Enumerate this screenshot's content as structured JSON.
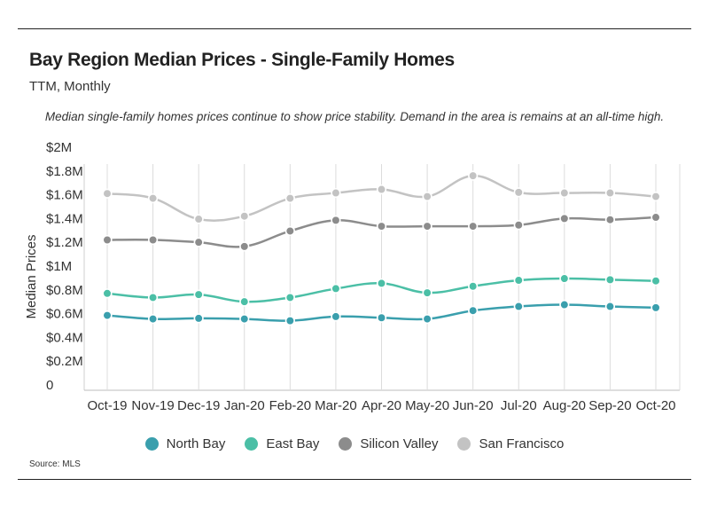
{
  "header": {
    "title": "Bay Region Median Prices - Single-Family Homes",
    "subtitle": "TTM, Monthly",
    "caption": "Median single-family homes prices continue to show price stability. Demand in the area is remains at an all-time high."
  },
  "footer": {
    "source": "Source:  MLS"
  },
  "chart_data": {
    "type": "line",
    "title": "Bay Region Median Prices - Single-Family Homes",
    "subtitle": "TTM, Monthly",
    "ylabel": "Median Prices",
    "xlabel": "",
    "ylim": [
      0,
      2000000
    ],
    "grid": "vertical",
    "legend_position": "bottom",
    "y_ticks": [
      {
        "value": 0,
        "label": "0"
      },
      {
        "value": 200000,
        "label": "$0.2M"
      },
      {
        "value": 400000,
        "label": "$0.4M"
      },
      {
        "value": 600000,
        "label": "$0.6M"
      },
      {
        "value": 800000,
        "label": "$0.8M"
      },
      {
        "value": 1000000,
        "label": "$1M"
      },
      {
        "value": 1200000,
        "label": "$1.2M"
      },
      {
        "value": 1400000,
        "label": "$1.4M"
      },
      {
        "value": 1600000,
        "label": "$1.6M"
      },
      {
        "value": 1800000,
        "label": "$1.8M"
      },
      {
        "value": 2000000,
        "label": "$2M"
      }
    ],
    "categories": [
      "Oct-19",
      "Nov-19",
      "Dec-19",
      "Jan-20",
      "Feb-20",
      "Mar-20",
      "Apr-20",
      "May-20",
      "Jun-20",
      "Jul-20",
      "Aug-20",
      "Sep-20",
      "Oct-20"
    ],
    "series": [
      {
        "name": "North Bay",
        "color": "#3a9fad",
        "values": [
          630000,
          600000,
          605000,
          600000,
          585000,
          620000,
          610000,
          600000,
          670000,
          705000,
          720000,
          705000,
          695000
        ]
      },
      {
        "name": "East Bay",
        "color": "#4bbfa6",
        "values": [
          815000,
          780000,
          805000,
          745000,
          780000,
          855000,
          900000,
          820000,
          875000,
          925000,
          940000,
          930000,
          920000
        ]
      },
      {
        "name": "Silicon Valley",
        "color": "#8c8c8c",
        "values": [
          1265000,
          1265000,
          1245000,
          1210000,
          1340000,
          1430000,
          1380000,
          1380000,
          1380000,
          1390000,
          1445000,
          1435000,
          1455000
        ]
      },
      {
        "name": "San Francisco",
        "color": "#c3c3c3",
        "values": [
          1655000,
          1615000,
          1440000,
          1465000,
          1615000,
          1660000,
          1690000,
          1630000,
          1805000,
          1665000,
          1660000,
          1660000,
          1630000
        ]
      }
    ]
  }
}
